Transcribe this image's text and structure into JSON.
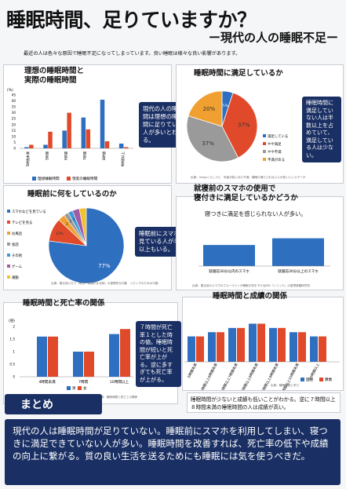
{
  "header": {
    "title": "睡眠時間、足りていますか？",
    "subtitle": "ー現代の人の睡眠不足ー",
    "intro": "最近の人は色々な原因で睡眠不足になってしまっています。良い睡眠は様々な良い影響があります。"
  },
  "colors": {
    "navy": "#1a2f63",
    "red": "#e04a2a",
    "blue": "#2e6fc0",
    "orange": "#f0a030",
    "gray": "#9a9a9a"
  },
  "sec1": {
    "title": "理想の睡眠時間と\n実際の睡眠時間",
    "unit": "(%)",
    "yticks": [
      "45",
      "40",
      "35",
      "30",
      "25",
      "20",
      "15",
      "10",
      "5",
      "0"
    ],
    "legend": [
      "理想睡眠時間",
      "現実の睡眠時間"
    ],
    "bubble": "現代の人の睡眠時間は理想の睡眠時間に足りていない人が多いとわかる。"
  },
  "sec2": {
    "title": "睡眠時間に満足しているか",
    "bubble": "睡眠時間に満足していない人は半数以上を占めていて、満足している人は少ない。",
    "note": "出典：livingくらしナビ　年齢が若いほど不満、睡眠の満たされない人が多いというデータ",
    "legend": [
      "満足している",
      "やや満足",
      "やや不満",
      "不満がある"
    ]
  },
  "sec3": {
    "title": "睡眠前に何をしているのか",
    "legend": [
      "スマホなどを見ている",
      "テレビを見る",
      "お風呂",
      "会話",
      "その他",
      "ゲーム",
      "運動"
    ],
    "bubble": "睡眠前にスマホを見ている人が半数以上もいる。",
    "note": "出典：寝る前に行う（毎日・時間がある時）の習慣的な行動　リビングのための行動"
  },
  "sec4": {
    "title": "就寝前のスマホの使用で\n寝付きに満足しているかどうか",
    "headline": "寝つきに満足を感じられない人が多い。",
    "note": "出典：寝る前のスマホのブルーライトが睡眠の質を下げるJMS「ノリック」の習慣実験研究所"
  },
  "sec5": {
    "title": "睡眠時間と死亡率の関係",
    "unit": "(倍)",
    "yticks": [
      "2",
      "1.5",
      "1",
      "0.5",
      "0"
    ],
    "legend": [
      "男",
      "女"
    ],
    "bubble": "７時間が死亡率１とした時の値。睡眠時間が短いと死亡率が上がる。逆に多すぎても死亡率が上がる。",
    "note": "出典：睡眠時間と死亡との関係"
  },
  "sec6": {
    "title": "睡眠時間と成績の関係",
    "legend": [
      "国語",
      "算数"
    ],
    "bubble": "睡眠時間が少ないと成績も低いことがわかる。逆に７時間以上８時間未満の睡眠時間の人は成績が高い。",
    "note": "出典：睡眠時間と学力"
  },
  "summary": {
    "heading": "まとめ",
    "text": "現代の人は睡眠時間が足りていない。睡眠前にスマホを利用してしまい、寝つきに満足できていない人が多い。睡眠時間を改善すれば、死亡率の低下や成績の向上に繋がる。質の良い生活を送るためにも睡眠には気を使うべきだ。"
  },
  "chart_data": [
    {
      "type": "bar",
      "title": "理想の睡眠時間と実際の睡眠時間",
      "categories": [
        "5時間未満",
        "5時間",
        "6時間",
        "7時間",
        "8時間",
        "9時間以上"
      ],
      "series": [
        {
          "name": "理想睡眠時間",
          "values": [
            1,
            3,
            15,
            26,
            41,
            4
          ]
        },
        {
          "name": "現実の睡眠時間",
          "values": [
            3,
            14,
            30,
            16,
            6,
            1
          ]
        }
      ],
      "ylim": [
        0,
        45
      ],
      "ylabel": "(%)"
    },
    {
      "type": "pie",
      "title": "睡眠時間に満足しているか",
      "labels": [
        "満足している",
        "やや満足",
        "やや不満",
        "不満がある"
      ],
      "values": [
        5,
        37,
        37,
        20
      ]
    },
    {
      "type": "pie",
      "title": "睡眠前に何をしているのか",
      "labels": [
        "スマホなどを見ている",
        "テレビを見る",
        "お風呂",
        "会話",
        "その他",
        "ゲーム",
        "運動"
      ],
      "values": [
        77,
        10,
        3,
        2,
        2,
        3,
        3
      ],
      "label_texts": [
        "77%",
        "10%",
        "3",
        "2",
        "2"
      ]
    },
    {
      "type": "bar",
      "title": "就寝前のスマホの使用で寝付きに満足しているかどうか",
      "categories": [
        "就寝前30分以内のスマホ",
        "就寝前30分以上のスマホ"
      ],
      "values": [
        47,
        62
      ]
    },
    {
      "type": "bar",
      "title": "睡眠時間と死亡率の関係",
      "categories": [
        "4時間未満",
        "7時間",
        "10時間以上"
      ],
      "series": [
        {
          "name": "男",
          "values": [
            1.6,
            1.0,
            1.7
          ]
        },
        {
          "name": "女",
          "values": [
            1.6,
            1.0,
            1.9
          ]
        }
      ],
      "ylim": [
        0,
        2
      ],
      "ylabel": "(倍)"
    },
    {
      "type": "bar",
      "title": "睡眠時間と成績の関係",
      "categories": [
        "5時間未満",
        "5時間以上6時間未満",
        "6時間以上7時間未満",
        "7時間以上8時間未満",
        "8時間以上9時間未満",
        "9時間以上10時間未満",
        "10時間以上"
      ],
      "series": [
        {
          "name": "国語",
          "values": [
            6,
            7,
            8,
            9,
            8,
            7,
            6
          ]
        },
        {
          "name": "算数",
          "values": [
            6,
            7,
            8,
            9,
            8,
            7,
            6
          ]
        }
      ]
    }
  ]
}
